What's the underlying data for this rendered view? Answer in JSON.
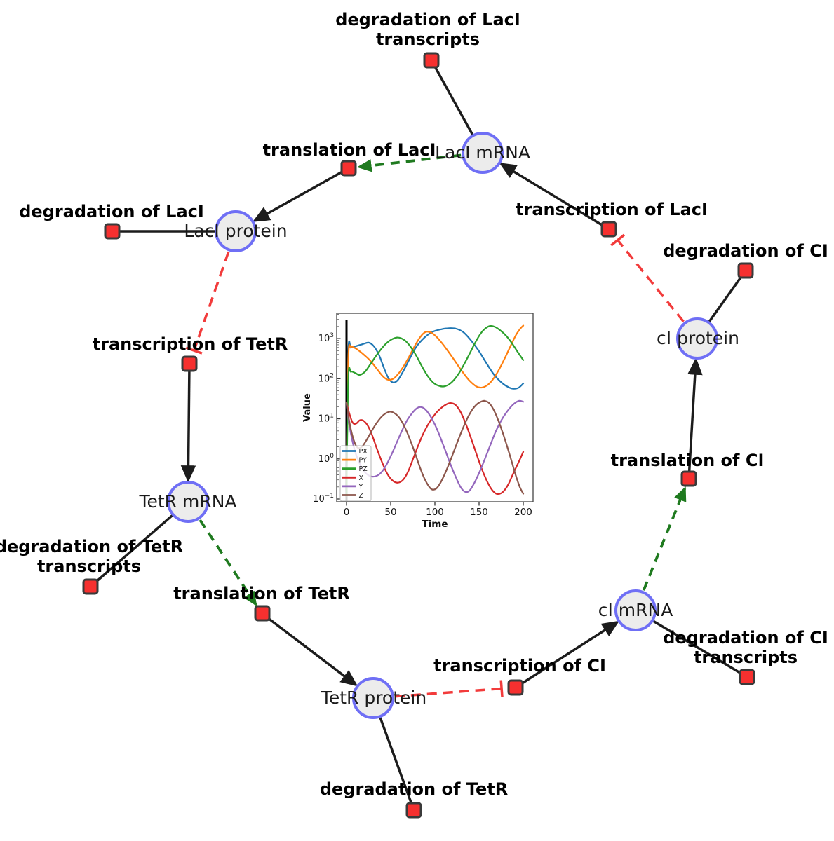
{
  "diagram": {
    "species": [
      {
        "label": "LacI mRNA"
      },
      {
        "label": "LacI protein"
      },
      {
        "label": "TetR mRNA"
      },
      {
        "label": "TetR protein"
      },
      {
        "label": "cI mRNA"
      },
      {
        "label": "cI protein"
      }
    ],
    "reactions": [
      {
        "label": "degradation of LacI\ntranscripts"
      },
      {
        "label": "translation of LacI"
      },
      {
        "label": "transcription of LacI"
      },
      {
        "label": "degradation of LacI"
      },
      {
        "label": "transcription of TetR"
      },
      {
        "label": "degradation of CI"
      },
      {
        "label": "translation of CI"
      },
      {
        "label": "degradation of TetR\ntranscripts"
      },
      {
        "label": "translation of TetR"
      },
      {
        "label": "transcription of CI"
      },
      {
        "label": "degradation of CI\ntranscripts"
      },
      {
        "label": "degradation of TetR"
      }
    ],
    "edges": [
      {
        "from": "LacI mRNA",
        "to": "degradation of LacI transcripts",
        "type": "reactant"
      },
      {
        "from": "LacI mRNA",
        "to": "translation of LacI",
        "type": "modifier"
      },
      {
        "from": "translation of LacI",
        "to": "LacI protein",
        "type": "product"
      },
      {
        "from": "transcription of LacI",
        "to": "LacI mRNA",
        "type": "product"
      },
      {
        "from": "cI protein",
        "to": "transcription of LacI",
        "type": "inhibition"
      },
      {
        "from": "LacI protein",
        "to": "degradation of LacI",
        "type": "reactant"
      },
      {
        "from": "LacI protein",
        "to": "transcription of TetR",
        "type": "inhibition"
      },
      {
        "from": "transcription of TetR",
        "to": "TetR mRNA",
        "type": "product"
      },
      {
        "from": "TetR mRNA",
        "to": "degradation of TetR transcripts",
        "type": "reactant"
      },
      {
        "from": "TetR mRNA",
        "to": "translation of TetR",
        "type": "modifier"
      },
      {
        "from": "translation of TetR",
        "to": "TetR protein",
        "type": "product"
      },
      {
        "from": "TetR protein",
        "to": "degradation of TetR",
        "type": "reactant"
      },
      {
        "from": "TetR protein",
        "to": "transcription of CI",
        "type": "inhibition"
      },
      {
        "from": "transcription of CI",
        "to": "cI mRNA",
        "type": "product"
      },
      {
        "from": "cI mRNA",
        "to": "degradation of CI transcripts",
        "type": "reactant"
      },
      {
        "from": "cI mRNA",
        "to": "translation of CI",
        "type": "modifier"
      },
      {
        "from": "translation of CI",
        "to": "cI protein",
        "type": "product"
      },
      {
        "from": "cI protein",
        "to": "degradation of CI",
        "type": "reactant"
      }
    ],
    "colors": {
      "species_fill": "#ececec",
      "species_border": "#6f6ff5",
      "reaction_fill": "#f6302f",
      "reaction_border": "#3a3a3a",
      "edge": "#1c1c1c",
      "modifier_edge": "#1f7a1f",
      "inhibition_edge": "#f23b3b"
    }
  },
  "chart_data": {
    "type": "line",
    "title": "",
    "xlabel": "Time",
    "ylabel": "Value",
    "yscale": "log",
    "x_ticks": [
      0,
      50,
      100,
      150,
      200
    ],
    "y_tick_exponents": [
      -1,
      0,
      1,
      2,
      3
    ],
    "xlim": [
      -11.1,
      211.1
    ],
    "ylim_exponents": [
      -1.07,
      3.63
    ],
    "grid": false,
    "legend_position": "lower left",
    "vline_x": 0,
    "series": [
      {
        "name": "PX",
        "color": "#1f77b4",
        "points": [
          [
            0,
            0.12
          ],
          [
            2,
            420
          ],
          [
            5,
            590
          ],
          [
            10,
            640
          ],
          [
            17,
            710
          ],
          [
            25,
            790
          ],
          [
            31,
            640
          ],
          [
            37,
            380
          ],
          [
            43,
            170
          ],
          [
            48,
            98
          ],
          [
            53,
            80
          ],
          [
            58,
            92
          ],
          [
            64,
            150
          ],
          [
            71,
            300
          ],
          [
            79,
            620
          ],
          [
            88,
            1050
          ],
          [
            97,
            1450
          ],
          [
            107,
            1700
          ],
          [
            116,
            1810
          ],
          [
            124,
            1760
          ],
          [
            132,
            1450
          ],
          [
            140,
            950
          ],
          [
            149,
            520
          ],
          [
            158,
            250
          ],
          [
            167,
            125
          ],
          [
            176,
            78
          ],
          [
            184,
            60
          ],
          [
            190,
            56
          ],
          [
            195,
            60
          ],
          [
            200,
            76
          ]
        ]
      },
      {
        "name": "PY",
        "color": "#ff7f0e",
        "points": [
          [
            0,
            0.12
          ],
          [
            2,
            300
          ],
          [
            5,
            600
          ],
          [
            9,
            590
          ],
          [
            14,
            500
          ],
          [
            20,
            390
          ],
          [
            27,
            280
          ],
          [
            34,
            180
          ],
          [
            41,
            115
          ],
          [
            47,
            94
          ],
          [
            53,
            100
          ],
          [
            59,
            135
          ],
          [
            65,
            210
          ],
          [
            71,
            360
          ],
          [
            77,
            640
          ],
          [
            83,
            1060
          ],
          [
            89,
            1440
          ],
          [
            95,
            1430
          ],
          [
            101,
            1150
          ],
          [
            108,
            770
          ],
          [
            115,
            480
          ],
          [
            123,
            270
          ],
          [
            131,
            150
          ],
          [
            139,
            90
          ],
          [
            147,
            64
          ],
          [
            153,
            60
          ],
          [
            159,
            68
          ],
          [
            165,
            92
          ],
          [
            172,
            160
          ],
          [
            179,
            320
          ],
          [
            186,
            680
          ],
          [
            192,
            1250
          ],
          [
            197,
            1800
          ],
          [
            200,
            2100
          ]
        ]
      },
      {
        "name": "PZ",
        "color": "#2ca02c",
        "points": [
          [
            0,
            0.12
          ],
          [
            2,
            100
          ],
          [
            5,
            148
          ],
          [
            10,
            138
          ],
          [
            15,
            124
          ],
          [
            21,
            150
          ],
          [
            27,
            230
          ],
          [
            33,
            360
          ],
          [
            39,
            540
          ],
          [
            45,
            760
          ],
          [
            51,
            950
          ],
          [
            57,
            1060
          ],
          [
            62,
            1010
          ],
          [
            68,
            820
          ],
          [
            74,
            560
          ],
          [
            80,
            340
          ],
          [
            86,
            190
          ],
          [
            92,
            115
          ],
          [
            98,
            80
          ],
          [
            104,
            67
          ],
          [
            110,
            64
          ],
          [
            116,
            72
          ],
          [
            122,
            95
          ],
          [
            128,
            145
          ],
          [
            134,
            250
          ],
          [
            140,
            450
          ],
          [
            146,
            820
          ],
          [
            152,
            1350
          ],
          [
            158,
            1850
          ],
          [
            163,
            2060
          ],
          [
            168,
            1950
          ],
          [
            174,
            1600
          ],
          [
            181,
            1150
          ],
          [
            188,
            720
          ],
          [
            194,
            450
          ],
          [
            200,
            290
          ]
        ]
      },
      {
        "name": "X",
        "color": "#d62728",
        "points": [
          [
            0,
            25
          ],
          [
            3,
            14
          ],
          [
            7,
            8
          ],
          [
            11,
            7.6
          ],
          [
            15,
            9.2
          ],
          [
            19,
            9.0
          ],
          [
            24,
            6.8
          ],
          [
            29,
            3.9
          ],
          [
            34,
            1.9
          ],
          [
            40,
            0.85
          ],
          [
            46,
            0.43
          ],
          [
            52,
            0.29
          ],
          [
            58,
            0.255
          ],
          [
            64,
            0.3
          ],
          [
            70,
            0.5
          ],
          [
            76,
            1.1
          ],
          [
            82,
            2.4
          ],
          [
            88,
            4.8
          ],
          [
            95,
            9
          ],
          [
            102,
            14.5
          ],
          [
            109,
            20
          ],
          [
            115,
            24
          ],
          [
            119,
            24.5
          ],
          [
            124,
            21.5
          ],
          [
            130,
            13.5
          ],
          [
            136,
            6.5
          ],
          [
            142,
            2.8
          ],
          [
            148,
            1.15
          ],
          [
            154,
            0.5
          ],
          [
            160,
            0.25
          ],
          [
            166,
            0.155
          ],
          [
            171,
            0.133
          ],
          [
            177,
            0.15
          ],
          [
            183,
            0.23
          ],
          [
            189,
            0.45
          ],
          [
            195,
            0.85
          ],
          [
            200,
            1.5
          ]
        ]
      },
      {
        "name": "Y",
        "color": "#9467bd",
        "points": [
          [
            0,
            25
          ],
          [
            3,
            7.5
          ],
          [
            7,
            2.6
          ],
          [
            11,
            1.25
          ],
          [
            16,
            0.68
          ],
          [
            21,
            0.46
          ],
          [
            27,
            0.37
          ],
          [
            33,
            0.37
          ],
          [
            39,
            0.45
          ],
          [
            45,
            0.7
          ],
          [
            51,
            1.3
          ],
          [
            57,
            2.6
          ],
          [
            63,
            5.2
          ],
          [
            69,
            9.5
          ],
          [
            75,
            14.5
          ],
          [
            80,
            18.5
          ],
          [
            84,
            19.6
          ],
          [
            88,
            18
          ],
          [
            93,
            13.5
          ],
          [
            99,
            8
          ],
          [
            105,
            4
          ],
          [
            111,
            1.8
          ],
          [
            117,
            0.8
          ],
          [
            123,
            0.38
          ],
          [
            129,
            0.2
          ],
          [
            134,
            0.152
          ],
          [
            139,
            0.16
          ],
          [
            145,
            0.26
          ],
          [
            151,
            0.5
          ],
          [
            157,
            1.05
          ],
          [
            163,
            2.3
          ],
          [
            169,
            4.9
          ],
          [
            175,
            9
          ],
          [
            181,
            14.5
          ],
          [
            187,
            21
          ],
          [
            192,
            26
          ],
          [
            196,
            28
          ],
          [
            200,
            26.5
          ]
        ]
      },
      {
        "name": "Z",
        "color": "#8c564b",
        "points": [
          [
            0,
            25
          ],
          [
            3,
            9
          ],
          [
            7,
            3.6
          ],
          [
            11,
            2.1
          ],
          [
            15,
            1.85
          ],
          [
            19,
            2.2
          ],
          [
            24,
            3.3
          ],
          [
            29,
            5.2
          ],
          [
            34,
            7.8
          ],
          [
            39,
            10.8
          ],
          [
            44,
            13.5
          ],
          [
            49,
            15
          ],
          [
            53,
            14.3
          ],
          [
            58,
            11.8
          ],
          [
            63,
            8.2
          ],
          [
            68,
            4.9
          ],
          [
            73,
            2.6
          ],
          [
            78,
            1.3
          ],
          [
            83,
            0.62
          ],
          [
            88,
            0.33
          ],
          [
            93,
            0.21
          ],
          [
            97,
            0.172
          ],
          [
            102,
            0.185
          ],
          [
            107,
            0.27
          ],
          [
            112,
            0.46
          ],
          [
            117,
            0.85
          ],
          [
            122,
            1.65
          ],
          [
            127,
            3.2
          ],
          [
            132,
            6
          ],
          [
            137,
            10.5
          ],
          [
            142,
            16.5
          ],
          [
            147,
            22.5
          ],
          [
            152,
            26.5
          ],
          [
            156,
            28
          ],
          [
            161,
            25
          ],
          [
            166,
            17.5
          ],
          [
            171,
            10
          ],
          [
            176,
            5
          ],
          [
            181,
            2.3
          ],
          [
            186,
            1.0
          ],
          [
            191,
            0.42
          ],
          [
            196,
            0.2
          ],
          [
            200,
            0.135
          ]
        ]
      }
    ]
  }
}
